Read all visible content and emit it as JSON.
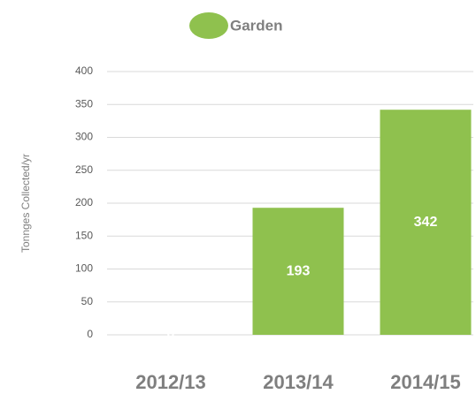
{
  "chart_data": {
    "type": "bar",
    "legend": "Garden",
    "y_axis_label": "Tonnges Collected/yr",
    "categories": [
      "2012/13",
      "2013/14",
      "2014/15"
    ],
    "series": [
      {
        "name": "Garden",
        "color": "#8fc14e",
        "values": [
          0,
          193,
          342
        ]
      }
    ],
    "ylim": [
      0,
      400
    ],
    "yticks": [
      0,
      50,
      100,
      150,
      200,
      250,
      300,
      350,
      400
    ],
    "grid": true
  }
}
